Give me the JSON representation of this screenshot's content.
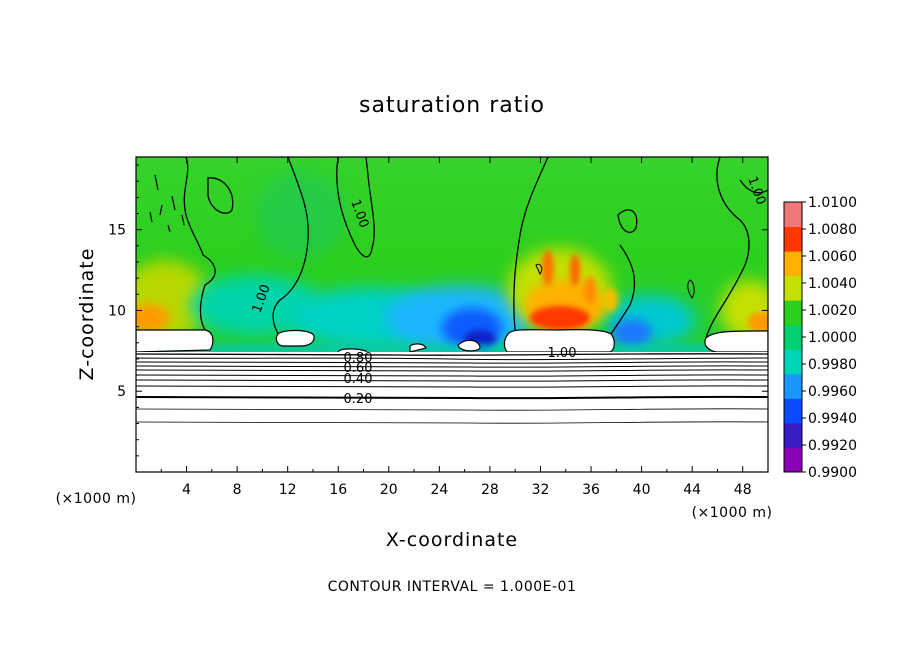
{
  "chart_data": {
    "type": "heatmap",
    "title": "saturation ratio",
    "xlabel": "X-coordinate",
    "ylabel": "Z-coordinate",
    "x_unit": "(×1000 m)",
    "y_unit": "(×1000 m)",
    "xlim": [
      0,
      50
    ],
    "ylim": [
      0,
      19.5
    ],
    "x_ticks": [
      "4",
      "8",
      "12",
      "16",
      "20",
      "24",
      "28",
      "32",
      "36",
      "40",
      "44",
      "48"
    ],
    "y_ticks": [
      "5",
      "10",
      "15"
    ],
    "colorbar": {
      "min": 0.99,
      "max": 1.01,
      "tick_labels": [
        "1.0100",
        "1.0080",
        "1.0060",
        "1.0040",
        "1.0020",
        "1.0000",
        "0.9980",
        "0.9960",
        "0.9940",
        "0.9920",
        "0.9900"
      ],
      "colors": [
        "#8a00b8",
        "#3a1cc4",
        "#0a4bff",
        "#1a96ff",
        "#00d4b8",
        "#00d070",
        "#2ccf1e",
        "#c4e000",
        "#ffb000",
        "#ff3800",
        "#f07878"
      ]
    },
    "contour_labels": [
      "1.00",
      "1.00",
      "1.00",
      "1.00",
      "0.80",
      "0.60",
      "0.40",
      "0.20"
    ],
    "contour_interval_note": "CONTOUR INTERVAL = 1.000E-01",
    "grid": false
  }
}
